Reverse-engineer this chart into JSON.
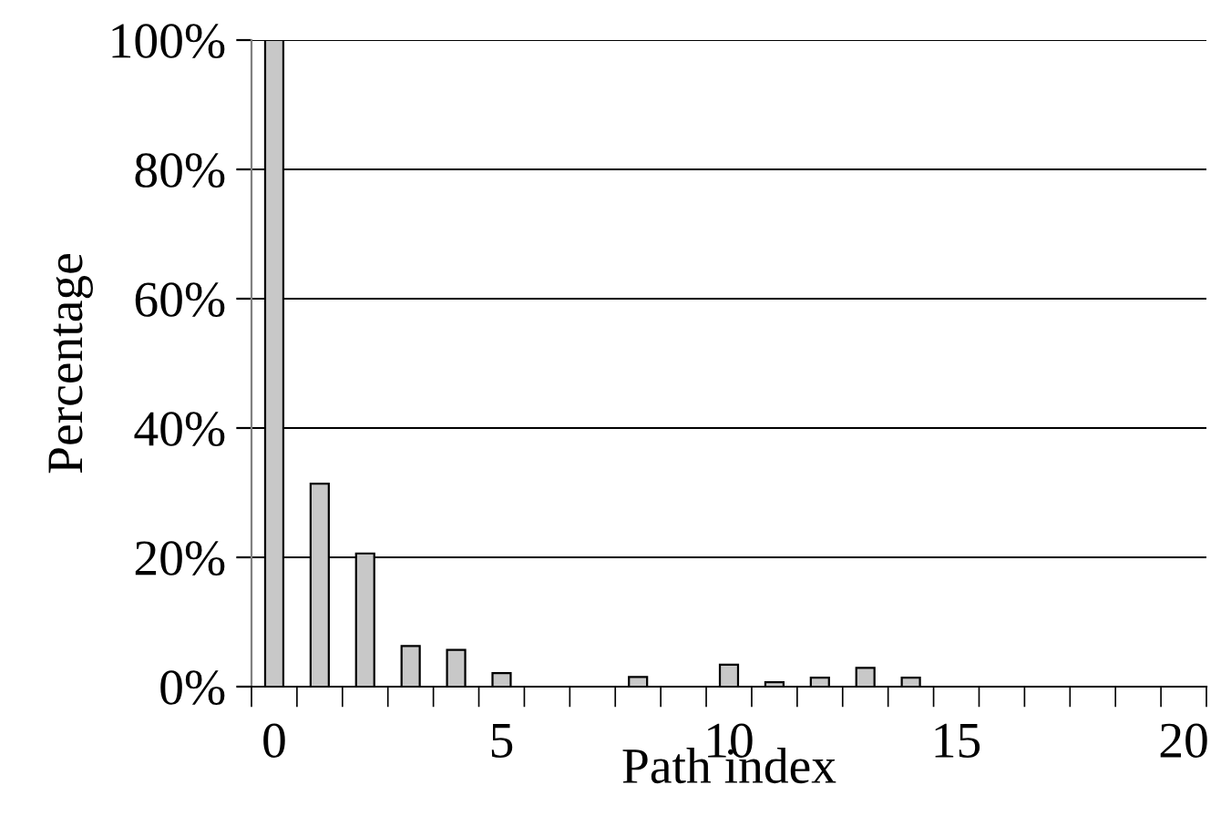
{
  "chart_data": {
    "type": "bar",
    "xlabel": "Path index",
    "ylabel": "Percentage",
    "categories": [
      "0",
      null,
      null,
      null,
      null,
      "5",
      null,
      null,
      null,
      null,
      "10",
      null,
      null,
      null,
      null,
      "15",
      null,
      null,
      null,
      null,
      "20"
    ],
    "values": [
      100,
      31.4,
      20.6,
      6.3,
      5.7,
      2.1,
      null,
      null,
      1.5,
      null,
      3.4,
      0.7,
      1.4,
      2.9,
      1.4,
      null,
      null,
      null,
      null,
      null,
      null
    ],
    "color": "#c8c8c8",
    "ylim": [
      0,
      100
    ],
    "yticks": [
      {
        "value": 0,
        "label": "0%"
      },
      {
        "value": 20,
        "label": "20%"
      },
      {
        "value": 40,
        "label": "40%"
      },
      {
        "value": 60,
        "label": "60%"
      },
      {
        "value": 80,
        "label": "80%"
      },
      {
        "value": 100,
        "label": "100%"
      }
    ],
    "grid": "y",
    "legend": false
  }
}
